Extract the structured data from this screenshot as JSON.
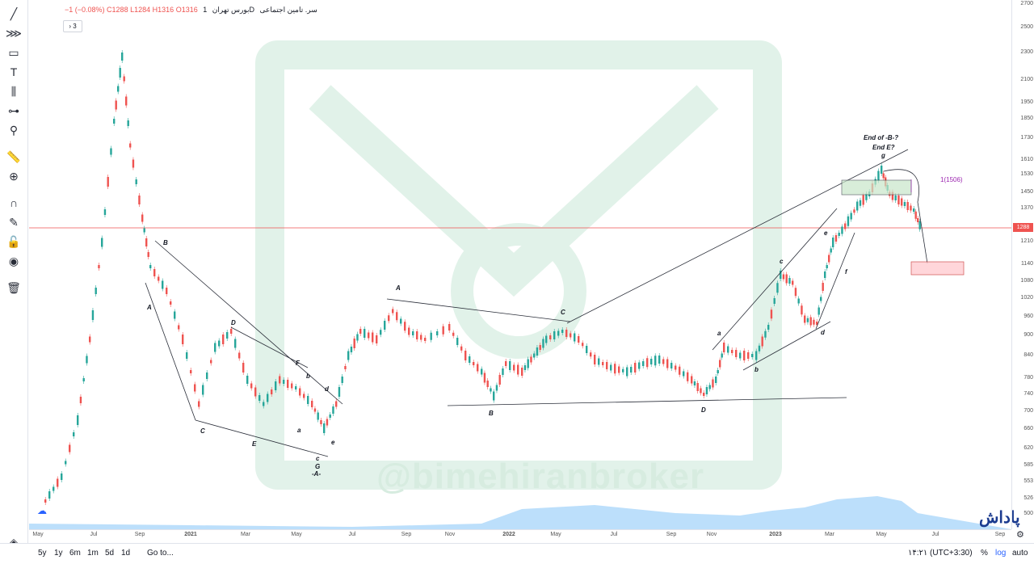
{
  "legend": {
    "symbol": "سر. تامین اجتماعی",
    "interval": "1D",
    "exchange": "بورس تهران",
    "open": "O1316",
    "high": "H1316",
    "low": "L1284",
    "close": "C1288",
    "change": "−1 (−0.08%)"
  },
  "collapse_label": "› 3",
  "price_ticks": [
    "2700",
    "2500",
    "2300",
    "2100",
    "1950",
    "1850",
    "1730",
    "1610",
    "1530",
    "1450",
    "1370",
    "1288",
    "1210",
    "1140",
    "1080",
    "1020",
    "960",
    "900",
    "840",
    "780",
    "740",
    "700",
    "660",
    "620",
    "585",
    "553",
    "526",
    "500"
  ],
  "current_price": "1288",
  "time_ticks": [
    "May",
    "Jul",
    "Sep",
    "2021",
    "Mar",
    "May",
    "Jul",
    "Sep",
    "Nov",
    "2022",
    "May",
    "Jul",
    "Sep",
    "Nov",
    "2023",
    "Mar",
    "May",
    "Jul",
    "Sep"
  ],
  "ranges": [
    "5y",
    "1y",
    "6m",
    "1m",
    "5d",
    "1d"
  ],
  "goto": "Go to...",
  "clock": "۱۴:۲۱ (UTC+3:30)",
  "scale_options": [
    "%",
    "log",
    "auto"
  ],
  "annotations": {
    "end_b": "End   of   -B-?",
    "end_e": "End E?",
    "fib": "1(1506)",
    "watermark": "@bimehiranbroker",
    "logo": "پاداش",
    "labels": [
      "B",
      "A",
      "C",
      "D",
      "E",
      "F",
      "b",
      "d",
      "a",
      "c",
      "e",
      "G",
      "-A-",
      "A",
      "C",
      "B",
      "D",
      "a",
      "b",
      "c",
      "d",
      "e",
      "f",
      "g"
    ]
  },
  "colors": {
    "up": "#26a69a",
    "down": "#ef5350",
    "accent": "#2962ff",
    "fib": "#9c27b0"
  },
  "tools": [
    "trend-line-icon",
    "fib-icon",
    "rectangle-icon",
    "text-icon",
    "pattern-icon",
    "measure-icon",
    "search-icon",
    "ruler-icon",
    "zoom-in-icon",
    "magnet-icon",
    "lock-drawing-icon",
    "unlock-icon",
    "eye-icon",
    "trash-icon",
    "layers-icon"
  ]
}
